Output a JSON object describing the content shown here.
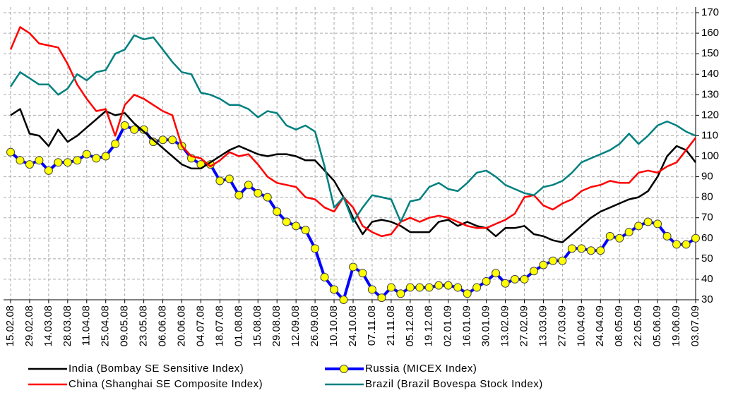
{
  "chart_data": {
    "type": "line",
    "categories": [
      "15.02.08",
      null,
      "29.02.08",
      null,
      "14.03.08",
      null,
      "28.03.08",
      null,
      "11.04.08",
      null,
      "25.04.08",
      null,
      "09.05.08",
      null,
      "23.05.08",
      null,
      "06.06.08",
      null,
      "20.06.08",
      null,
      "04.07.08",
      null,
      "18.07.08",
      null,
      "01.08.08",
      null,
      "15.08.08",
      null,
      "29.08.08",
      null,
      "12.09.08",
      null,
      "26.09.08",
      null,
      "10.10.08",
      null,
      "24.10.08",
      null,
      "07.11.08",
      null,
      "21.11.08",
      null,
      "05.12.08",
      null,
      "19.12.08",
      null,
      "02.01.09",
      null,
      "16.01.09",
      null,
      "30.01.09",
      null,
      "13.02.09",
      null,
      "27.02.09",
      null,
      "13.03.09",
      null,
      "27.03.09",
      null,
      "10.04.09",
      null,
      "24.04.09",
      null,
      "08.05.09",
      null,
      "22.05.09",
      null,
      "05.06.09",
      null,
      "19.06.09",
      null,
      "03.07.09"
    ],
    "series": [
      {
        "name": "India (Bombay SE Sensitive Index)",
        "color": "#000000",
        "values": [
          120,
          123,
          111,
          110,
          105,
          113,
          107,
          110,
          114,
          118,
          122,
          120,
          121,
          116,
          112,
          108,
          104,
          100,
          96,
          94,
          94,
          97,
          100,
          103,
          105,
          103,
          101,
          100,
          101,
          101,
          100,
          98,
          98,
          93,
          88,
          80,
          70,
          62,
          68,
          69,
          68,
          66,
          63,
          63,
          63,
          68,
          69,
          66,
          68,
          66,
          65,
          61,
          65,
          65,
          66,
          62,
          61,
          59,
          58,
          62,
          66,
          70,
          73,
          75,
          77,
          79,
          80,
          83,
          90,
          100,
          105,
          103,
          97
        ]
      },
      {
        "name": "Russia (MICEX Index)",
        "color": "#0000ff",
        "marker": true,
        "values": [
          102,
          98,
          96,
          98,
          93,
          97,
          97,
          98,
          101,
          99,
          100,
          106,
          115,
          113,
          113,
          107,
          108,
          108,
          105,
          99,
          96,
          96,
          88,
          89,
          81,
          86,
          82,
          80,
          73,
          68,
          66,
          64,
          55,
          41,
          35,
          30,
          46,
          43,
          35,
          31,
          36,
          33,
          36,
          36,
          36,
          37,
          37,
          36,
          33,
          36,
          39,
          43,
          38,
          40,
          40,
          44,
          47,
          49,
          49,
          55,
          55,
          54,
          54,
          61,
          60,
          63,
          66,
          68,
          67,
          61,
          57,
          57,
          60
        ]
      },
      {
        "name": "China (Shanghai SE Composite Index)",
        "color": "#ff0000",
        "values": [
          152,
          163,
          160,
          155,
          154,
          153,
          145,
          135,
          128,
          122,
          123,
          110,
          125,
          130,
          128,
          125,
          122,
          120,
          105,
          100,
          99,
          95,
          98,
          102,
          100,
          101,
          96,
          90,
          87,
          86,
          85,
          80,
          79,
          75,
          73,
          80,
          75,
          66,
          63,
          61,
          62,
          68,
          70,
          68,
          70,
          71,
          70,
          68,
          66,
          65,
          65,
          67,
          69,
          72,
          80,
          81,
          76,
          74,
          77,
          79,
          83,
          85,
          86,
          88,
          87,
          87,
          92,
          93,
          92,
          95,
          97,
          103,
          109
        ]
      },
      {
        "name": "Brazil (Brazil Bovespa Stock Index)",
        "color": "#008080",
        "values": [
          134,
          141,
          138,
          135,
          135,
          130,
          133,
          140,
          137,
          141,
          142,
          150,
          152,
          159,
          157,
          158,
          152,
          146,
          141,
          140,
          131,
          130,
          128,
          125,
          125,
          123,
          119,
          122,
          121,
          115,
          113,
          115,
          112,
          95,
          75,
          80,
          68,
          75,
          81,
          80,
          79,
          68,
          78,
          79,
          85,
          87,
          84,
          83,
          87,
          92,
          93,
          90,
          86,
          84,
          82,
          81,
          85,
          86,
          88,
          92,
          97,
          99,
          101,
          103,
          106,
          111,
          106,
          110,
          115,
          117,
          115,
          112,
          110
        ]
      }
    ],
    "ylim": [
      30,
      170
    ],
    "yticks": [
      30,
      40,
      50,
      60,
      70,
      80,
      90,
      100,
      110,
      120,
      130,
      140,
      150,
      160,
      170
    ],
    "grid": true
  }
}
